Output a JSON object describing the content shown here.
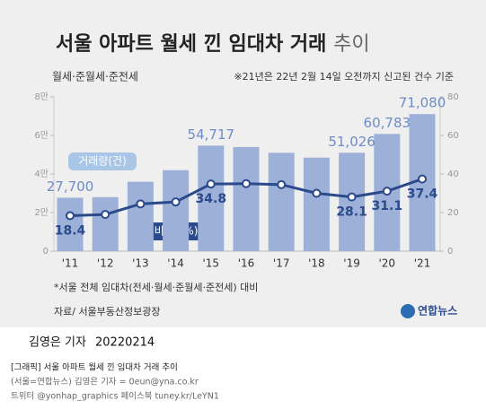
{
  "chart_data": {
    "type": "bar_line",
    "title": "서울 아파트 월세 낀 임대차 거래",
    "title_suffix": "추이",
    "subtitle": "월세·준월세·준전세",
    "note": "※21년은 22년 2월 14일 오전까지 신고된 건수 기준",
    "categories": [
      "'11",
      "'12",
      "'13",
      "'14",
      "'15",
      "'16",
      "'17",
      "'18",
      "'19",
      "'20",
      "'21"
    ],
    "series": [
      {
        "name": "거래량(건)",
        "color": "#9db1d8",
        "axis": "y",
        "values": [
          27700,
          28000,
          36000,
          42000,
          54717,
          54000,
          51000,
          48500,
          51026,
          60783,
          71080
        ],
        "value_labels": [
          "27,700",
          null,
          null,
          null,
          "54,717",
          null,
          null,
          null,
          "51,026",
          "60,783",
          "71,080"
        ]
      },
      {
        "name": "비중*(%)",
        "color": "#2b4a8c",
        "axis": "y2",
        "values": [
          18.4,
          19,
          24.5,
          25.5,
          34.8,
          35,
          34.5,
          30,
          28.1,
          31.1,
          37.4
        ],
        "value_labels": [
          "18.4",
          null,
          null,
          null,
          "34.8",
          null,
          null,
          null,
          "28.1",
          "31.1",
          "37.4"
        ]
      }
    ],
    "ylim": [
      0,
      80000
    ],
    "yticks": [
      0,
      {
        "value": 20000,
        "label": "2만"
      },
      {
        "value": 40000,
        "label": "4만"
      },
      {
        "value": 60000,
        "label": "6만"
      },
      {
        "value": 80000,
        "label": "8만"
      }
    ],
    "y2lim": [
      0,
      80
    ],
    "y2ticks": [
      0,
      20,
      40,
      60,
      80
    ],
    "footnote": "*서울 전체 임대차(전세·월세·준월세·준전세) 대비",
    "source": "자료/ 서울부동산정보광장",
    "logo": "연합뉴스",
    "byline": "김영은 기자",
    "date": "20220214",
    "caption": [
      "[그래픽] 서울 아파트 월세 낀 임대차 거래 추이",
      "(서울=연합뉴스) 김영은 기자 = 0eun@yna.co.kr",
      "트위터 @yonhap_graphics 페이스북 tuney.kr/LeYN1"
    ]
  }
}
